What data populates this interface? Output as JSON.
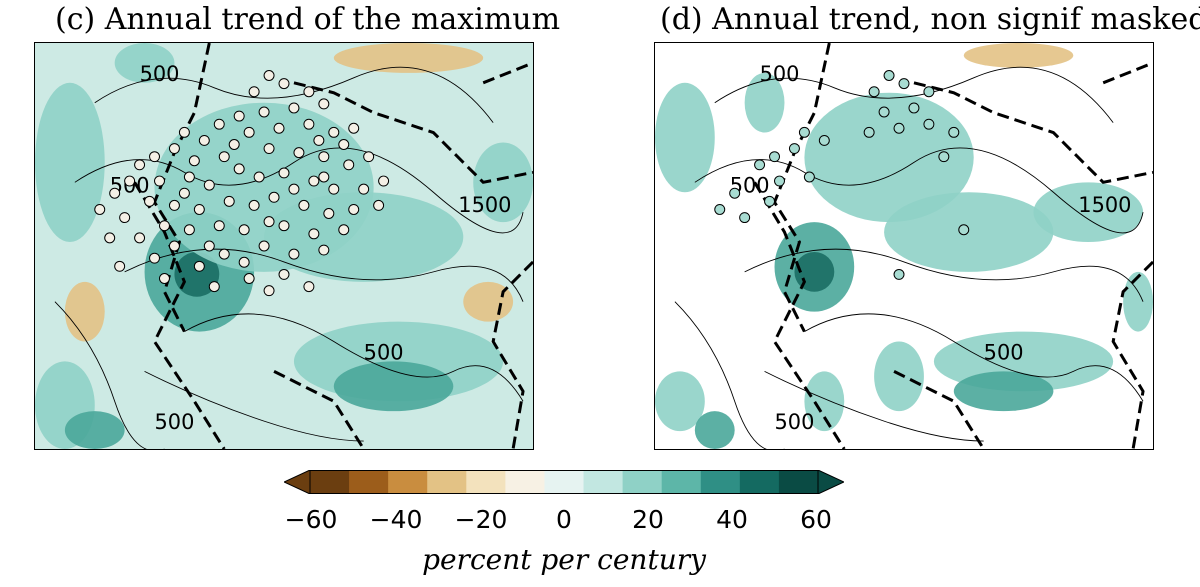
{
  "panels": [
    {
      "title": "(c) Annual trend of the maximum",
      "contour_labels": [
        "500",
        "500",
        "1500",
        "500",
        "500"
      ],
      "masked": false
    },
    {
      "title": "(d) Annual trend, non signif masked",
      "contour_labels": [
        "500",
        "500",
        "1500",
        "500",
        "500"
      ],
      "masked": true
    }
  ],
  "colorbar": {
    "ticks": [
      "−60",
      "−40",
      "−20",
      "0",
      "20",
      "40",
      "60"
    ],
    "label": "percent per century",
    "range": [
      -60,
      60
    ],
    "colors": [
      "#6b3e10",
      "#9c5d1b",
      "#c98d3f",
      "#e3c285",
      "#f3e2bd",
      "#f7f1e4",
      "#e6f3f1",
      "#c2e7e1",
      "#8fd1c6",
      "#5db6a8",
      "#2f8f85",
      "#146a61",
      "#0a4b44"
    ]
  },
  "colors": {
    "trend_light": "#cdeae4",
    "trend_mid": "#8fd1c6",
    "trend_strong": "#4aa79a",
    "trend_darkest": "#1b6e64",
    "trend_negative": "#e3c285",
    "station_marker_c": "#f4f0e6",
    "station_marker_d": "#a8dcd2"
  },
  "stations": [
    [
      0.47,
      0.08
    ],
    [
      0.5,
      0.1
    ],
    [
      0.44,
      0.12
    ],
    [
      0.55,
      0.12
    ],
    [
      0.58,
      0.15
    ],
    [
      0.52,
      0.16
    ],
    [
      0.46,
      0.17
    ],
    [
      0.41,
      0.18
    ],
    [
      0.37,
      0.2
    ],
    [
      0.3,
      0.22
    ],
    [
      0.34,
      0.24
    ],
    [
      0.28,
      0.26
    ],
    [
      0.43,
      0.22
    ],
    [
      0.49,
      0.21
    ],
    [
      0.55,
      0.2
    ],
    [
      0.6,
      0.22
    ],
    [
      0.64,
      0.21
    ],
    [
      0.24,
      0.28
    ],
    [
      0.21,
      0.3
    ],
    [
      0.38,
      0.28
    ],
    [
      0.47,
      0.26
    ],
    [
      0.53,
      0.27
    ],
    [
      0.58,
      0.28
    ],
    [
      0.63,
      0.3
    ],
    [
      0.67,
      0.28
    ],
    [
      0.19,
      0.34
    ],
    [
      0.25,
      0.34
    ],
    [
      0.31,
      0.33
    ],
    [
      0.35,
      0.35
    ],
    [
      0.41,
      0.31
    ],
    [
      0.45,
      0.33
    ],
    [
      0.5,
      0.32
    ],
    [
      0.56,
      0.34
    ],
    [
      0.6,
      0.36
    ],
    [
      0.66,
      0.36
    ],
    [
      0.7,
      0.34
    ],
    [
      0.16,
      0.37
    ],
    [
      0.23,
      0.39
    ],
    [
      0.28,
      0.4
    ],
    [
      0.33,
      0.41
    ],
    [
      0.39,
      0.39
    ],
    [
      0.44,
      0.4
    ],
    [
      0.48,
      0.38
    ],
    [
      0.54,
      0.4
    ],
    [
      0.59,
      0.42
    ],
    [
      0.64,
      0.41
    ],
    [
      0.69,
      0.4
    ],
    [
      0.13,
      0.41
    ],
    [
      0.18,
      0.43
    ],
    [
      0.26,
      0.45
    ],
    [
      0.31,
      0.46
    ],
    [
      0.37,
      0.45
    ],
    [
      0.42,
      0.46
    ],
    [
      0.5,
      0.45
    ],
    [
      0.56,
      0.47
    ],
    [
      0.62,
      0.46
    ],
    [
      0.15,
      0.48
    ],
    [
      0.21,
      0.48
    ],
    [
      0.28,
      0.5
    ],
    [
      0.35,
      0.5
    ],
    [
      0.46,
      0.5
    ],
    [
      0.52,
      0.52
    ],
    [
      0.58,
      0.51
    ],
    [
      0.24,
      0.53
    ],
    [
      0.33,
      0.55
    ],
    [
      0.42,
      0.54
    ],
    [
      0.5,
      0.57
    ],
    [
      0.36,
      0.6
    ],
    [
      0.47,
      0.61
    ],
    [
      0.55,
      0.6
    ],
    [
      0.26,
      0.58
    ],
    [
      0.17,
      0.55
    ],
    [
      0.4,
      0.25
    ],
    [
      0.57,
      0.24
    ],
    [
      0.32,
      0.29
    ],
    [
      0.62,
      0.25
    ],
    [
      0.52,
      0.36
    ],
    [
      0.47,
      0.44
    ],
    [
      0.38,
      0.52
    ],
    [
      0.3,
      0.37
    ],
    [
      0.58,
      0.33
    ],
    [
      0.43,
      0.58
    ]
  ],
  "stations_d": [
    [
      0.47,
      0.08
    ],
    [
      0.5,
      0.1
    ],
    [
      0.44,
      0.12
    ],
    [
      0.55,
      0.12
    ],
    [
      0.46,
      0.17
    ],
    [
      0.49,
      0.21
    ],
    [
      0.52,
      0.16
    ],
    [
      0.43,
      0.22
    ],
    [
      0.55,
      0.2
    ],
    [
      0.6,
      0.22
    ],
    [
      0.3,
      0.22
    ],
    [
      0.34,
      0.24
    ],
    [
      0.28,
      0.26
    ],
    [
      0.24,
      0.28
    ],
    [
      0.21,
      0.3
    ],
    [
      0.31,
      0.33
    ],
    [
      0.25,
      0.34
    ],
    [
      0.13,
      0.41
    ],
    [
      0.18,
      0.43
    ],
    [
      0.23,
      0.39
    ],
    [
      0.16,
      0.37
    ],
    [
      0.62,
      0.46
    ],
    [
      0.58,
      0.28
    ],
    [
      0.49,
      0.57
    ]
  ]
}
